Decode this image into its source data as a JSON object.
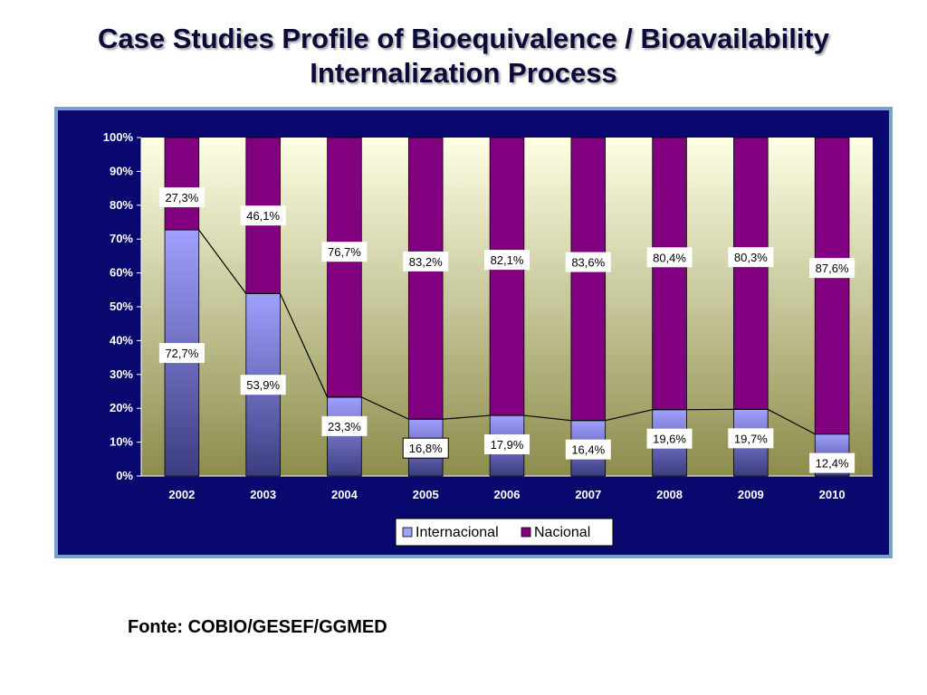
{
  "slide": {
    "title_line1": "Case Studies Profile of Bioequivalence / Bioavailability",
    "title_line2": "Internalization Process",
    "source": "Fonte: COBIO/GESEF/GGMED"
  },
  "chart_data": {
    "type": "bar",
    "stacked": true,
    "percent": true,
    "categories": [
      "2002",
      "2003",
      "2004",
      "2005",
      "2006",
      "2007",
      "2008",
      "2009",
      "2010"
    ],
    "series": [
      {
        "name": "Internacional",
        "values": [
          72.7,
          53.9,
          23.3,
          16.8,
          17.9,
          16.4,
          19.6,
          19.7,
          12.4
        ],
        "labels": [
          "72,7%",
          "53,9%",
          "23,3%",
          "16,8%",
          "17,9%",
          "16,4%",
          "19,6%",
          "19,7%",
          "12,4%"
        ]
      },
      {
        "name": "Nacional",
        "values": [
          27.3,
          46.1,
          76.7,
          83.2,
          82.1,
          83.6,
          80.4,
          80.3,
          87.6
        ],
        "labels": [
          "27,3%",
          "46,1%",
          "76,7%",
          "83,2%",
          "82,1%",
          "83,6%",
          "80,4%",
          "80,3%",
          "87,6%"
        ]
      }
    ],
    "ylim": [
      0,
      100
    ],
    "yticks": [
      "0%",
      "10%",
      "20%",
      "30%",
      "40%",
      "50%",
      "60%",
      "70%",
      "80%",
      "90%",
      "100%"
    ],
    "grid": false,
    "series_lines": true,
    "legend_position": "bottom",
    "colors": {
      "internacional": "#a0a0ff",
      "nacional": "#800080",
      "plot_top": "#ffffe6",
      "plot_bottom": "#8c8c4c",
      "frame": "#08086e"
    }
  }
}
